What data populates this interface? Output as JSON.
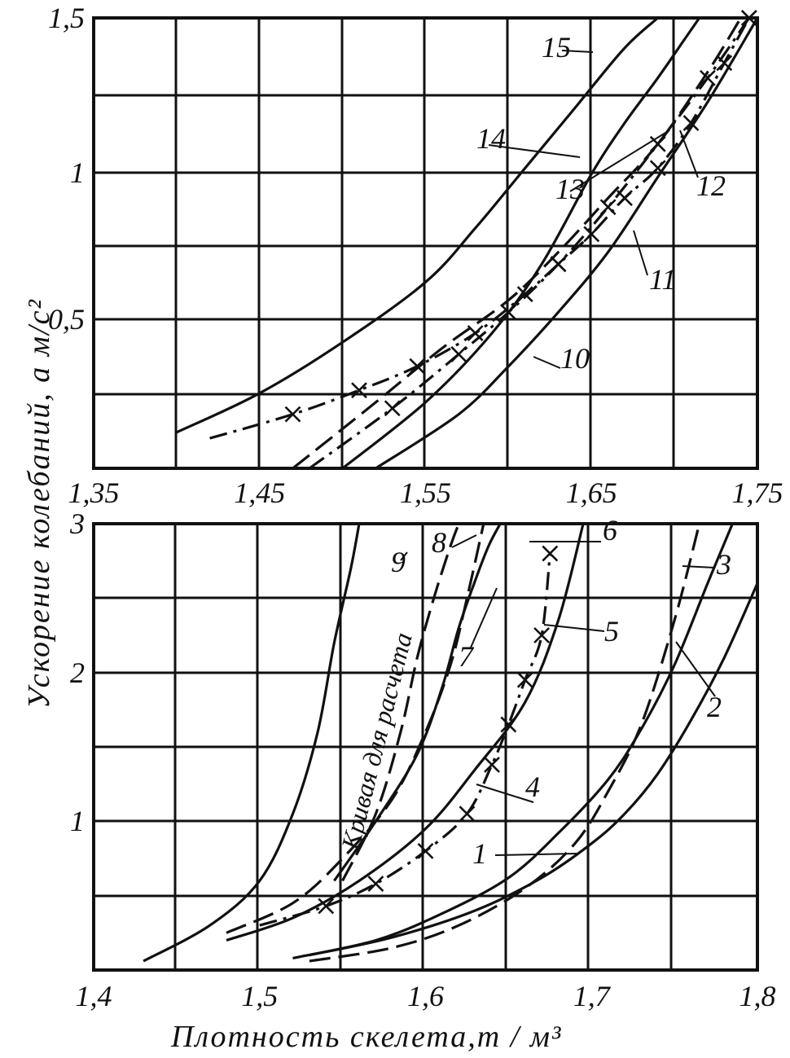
{
  "chart_data": [
    {
      "type": "line",
      "panel": "top",
      "xlabel": "",
      "ylabel": "",
      "xlim": [
        1.35,
        1.75
      ],
      "ylim": [
        0,
        1.5
      ],
      "x_ticks": [
        "1,35",
        "1,45",
        "1,55",
        "1,65",
        "1,75"
      ],
      "y_ticks": [
        "0,5",
        "1",
        "1,5"
      ],
      "grid": true,
      "series": [
        {
          "name": "10",
          "style": "solid",
          "marker": "none",
          "x": [
            1.52,
            1.57,
            1.6,
            1.63,
            1.66,
            1.69,
            1.72,
            1.75
          ],
          "y": [
            0.0,
            0.18,
            0.34,
            0.52,
            0.72,
            0.97,
            1.22,
            1.5
          ]
        },
        {
          "name": "11",
          "style": "dashdot",
          "marker": "x",
          "x": [
            1.48,
            1.53,
            1.57,
            1.6,
            1.63,
            1.66,
            1.69,
            1.72,
            1.745
          ],
          "y": [
            0.0,
            0.2,
            0.38,
            0.52,
            0.68,
            0.87,
            1.08,
            1.3,
            1.5
          ]
        },
        {
          "name": "12",
          "style": "dashed",
          "marker": "none",
          "x": [
            1.47,
            1.52,
            1.56,
            1.6,
            1.63,
            1.66,
            1.69,
            1.72,
            1.74
          ],
          "y": [
            0.0,
            0.22,
            0.4,
            0.56,
            0.72,
            0.9,
            1.08,
            1.32,
            1.5
          ]
        },
        {
          "name": "13",
          "style": "solid",
          "marker": "none",
          "x": [
            1.5,
            1.55,
            1.59,
            1.62,
            1.65,
            1.67,
            1.69,
            1.705,
            1.715
          ],
          "y": [
            0.0,
            0.22,
            0.45,
            0.68,
            0.98,
            1.15,
            1.3,
            1.42,
            1.5
          ]
        },
        {
          "name": "14",
          "style": "dashdot",
          "marker": "x",
          "x": [
            1.42,
            1.47,
            1.51,
            1.545,
            1.58,
            1.61,
            1.63,
            1.65,
            1.67,
            1.69,
            1.71,
            1.73,
            1.745
          ],
          "y": [
            0.1,
            0.18,
            0.26,
            0.34,
            0.45,
            0.58,
            0.68,
            0.78,
            0.9,
            1.0,
            1.15,
            1.35,
            1.5
          ]
        },
        {
          "name": "15",
          "style": "solid",
          "marker": "none",
          "x": [
            1.4,
            1.45,
            1.5,
            1.55,
            1.58,
            1.61,
            1.64,
            1.67,
            1.69
          ],
          "y": [
            0.12,
            0.25,
            0.42,
            0.62,
            0.8,
            1.0,
            1.2,
            1.4,
            1.5
          ]
        }
      ],
      "curve_labels": [
        "10",
        "11",
        "12",
        "13",
        "14",
        "15"
      ]
    },
    {
      "type": "line",
      "panel": "bottom",
      "xlabel": "Плотность скелета,т / м³",
      "ylabel": "Ускорение колебаний, а м/с²",
      "xlim": [
        1.4,
        1.8
      ],
      "ylim": [
        0,
        3
      ],
      "x_ticks": [
        "1,4",
        "1,5",
        "1,6",
        "1,7",
        "1,8"
      ],
      "y_ticks": [
        "1",
        "2",
        "3"
      ],
      "grid": true,
      "series": [
        {
          "name": "1",
          "style": "solid",
          "marker": "none",
          "x": [
            1.53,
            1.58,
            1.63,
            1.67,
            1.7,
            1.72,
            1.74,
            1.76,
            1.78,
            1.8
          ],
          "y": [
            0.1,
            0.22,
            0.4,
            0.62,
            0.85,
            1.05,
            1.32,
            1.68,
            2.1,
            2.6
          ]
        },
        {
          "name": "2",
          "style": "dashed",
          "marker": "none",
          "x": [
            1.53,
            1.58,
            1.62,
            1.66,
            1.69,
            1.71,
            1.73,
            1.75,
            1.765
          ],
          "y": [
            0.06,
            0.15,
            0.3,
            0.55,
            0.85,
            1.2,
            1.65,
            2.35,
            3.0
          ]
        },
        {
          "name": "3",
          "style": "solid",
          "marker": "none",
          "x": [
            1.52,
            1.57,
            1.61,
            1.65,
            1.68,
            1.71,
            1.73,
            1.75,
            1.77,
            1.785
          ],
          "y": [
            0.08,
            0.2,
            0.38,
            0.62,
            0.92,
            1.28,
            1.62,
            2.05,
            2.6,
            3.0
          ]
        },
        {
          "name": "4",
          "style": "dashdot",
          "marker": "x",
          "x": [
            1.5,
            1.54,
            1.57,
            1.6,
            1.625,
            1.64,
            1.65,
            1.66,
            1.67,
            1.675
          ],
          "y": [
            0.3,
            0.43,
            0.58,
            0.8,
            1.05,
            1.38,
            1.65,
            1.95,
            2.25,
            2.8
          ]
        },
        {
          "name": "5",
          "style": "solid",
          "marker": "none",
          "x": [
            1.48,
            1.52,
            1.56,
            1.6,
            1.63,
            1.66,
            1.68,
            1.695
          ],
          "y": [
            0.2,
            0.35,
            0.6,
            0.95,
            1.35,
            1.8,
            2.35,
            3.0
          ]
        },
        {
          "name": "6",
          "style": "solid",
          "marker": "none",
          "x": [
            1.545,
            1.57,
            1.595,
            1.61,
            1.62,
            1.63,
            1.638,
            1.645
          ],
          "y": [
            0.6,
            1.0,
            1.45,
            1.9,
            2.3,
            2.62,
            2.85,
            3.0
          ]
        },
        {
          "name": "7",
          "style": "dashed",
          "marker": "none",
          "x": [
            1.48,
            1.52,
            1.55,
            1.58,
            1.6,
            1.615,
            1.625,
            1.635
          ],
          "y": [
            0.25,
            0.45,
            0.75,
            1.15,
            1.6,
            2.05,
            2.5,
            3.0
          ]
        },
        {
          "name": "8",
          "style": "dashed",
          "marker": "none",
          "x": [
            1.55,
            1.57,
            1.585,
            1.595,
            1.605,
            1.615,
            1.62
          ],
          "y": [
            0.6,
            1.05,
            1.6,
            2.1,
            2.5,
            2.85,
            3.0
          ]
        },
        {
          "name": "9",
          "style": "solid",
          "marker": "none",
          "x": [
            1.43,
            1.47,
            1.5,
            1.52,
            1.535,
            1.545,
            1.555,
            1.56
          ],
          "y": [
            0.06,
            0.3,
            0.6,
            1.05,
            1.6,
            2.2,
            2.7,
            3.0
          ]
        }
      ],
      "curve_labels": [
        "1",
        "2",
        "3",
        "4",
        "5",
        "6",
        "7",
        "8",
        "9"
      ],
      "annotations": [
        "Кривая для расчета"
      ]
    }
  ]
}
